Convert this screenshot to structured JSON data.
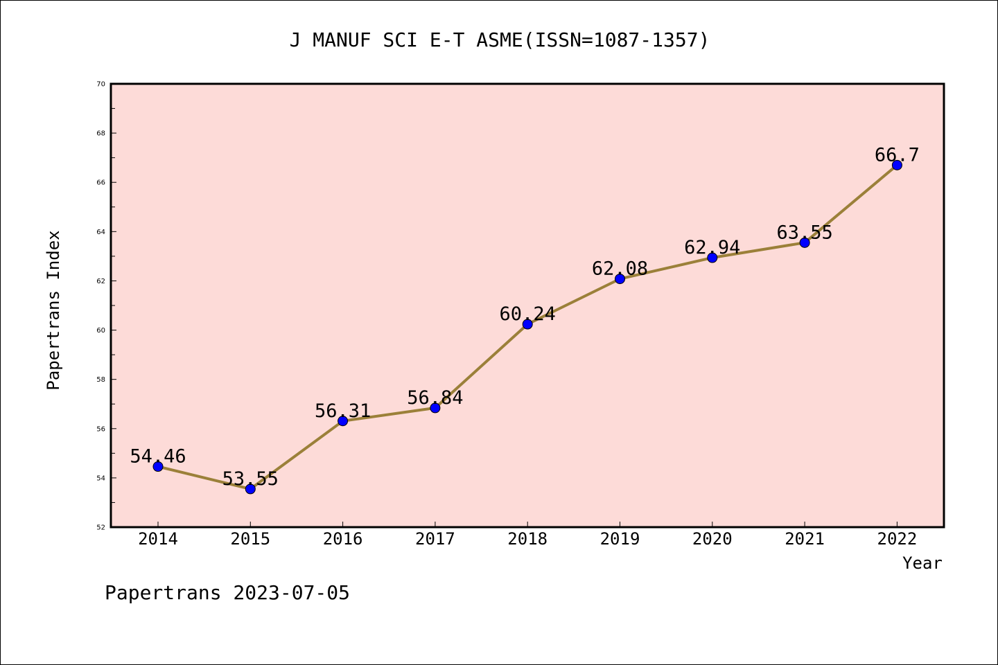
{
  "chart_data": {
    "type": "line",
    "title": "J MANUF SCI E-T ASME(ISSN=1087-1357)",
    "xlabel": "Year",
    "ylabel": "Papertrans Index",
    "categories": [
      "2014",
      "2015",
      "2016",
      "2017",
      "2018",
      "2019",
      "2020",
      "2021",
      "2022"
    ],
    "series": [
      {
        "values": [
          54.46,
          53.55,
          56.31,
          56.84,
          60.24,
          62.08,
          62.94,
          63.55,
          66.7
        ],
        "labels": [
          "54.46",
          "53.55",
          "56.31",
          "56.84",
          "60.24",
          "62.08",
          "62.94",
          "63.55",
          "66.7"
        ]
      }
    ],
    "ylim": [
      52,
      70
    ],
    "yticks": [
      "52",
      "54",
      "56",
      "58",
      "60",
      "62",
      "64",
      "66",
      "68",
      "70"
    ],
    "grid": false,
    "legend": "none",
    "colors": {
      "plot_background": "#fddbd8",
      "line": "#9b8039",
      "marker": "#0000ff",
      "axes": "#000000"
    }
  },
  "footer": {
    "credit": "Papertrans 2023-07-05"
  }
}
